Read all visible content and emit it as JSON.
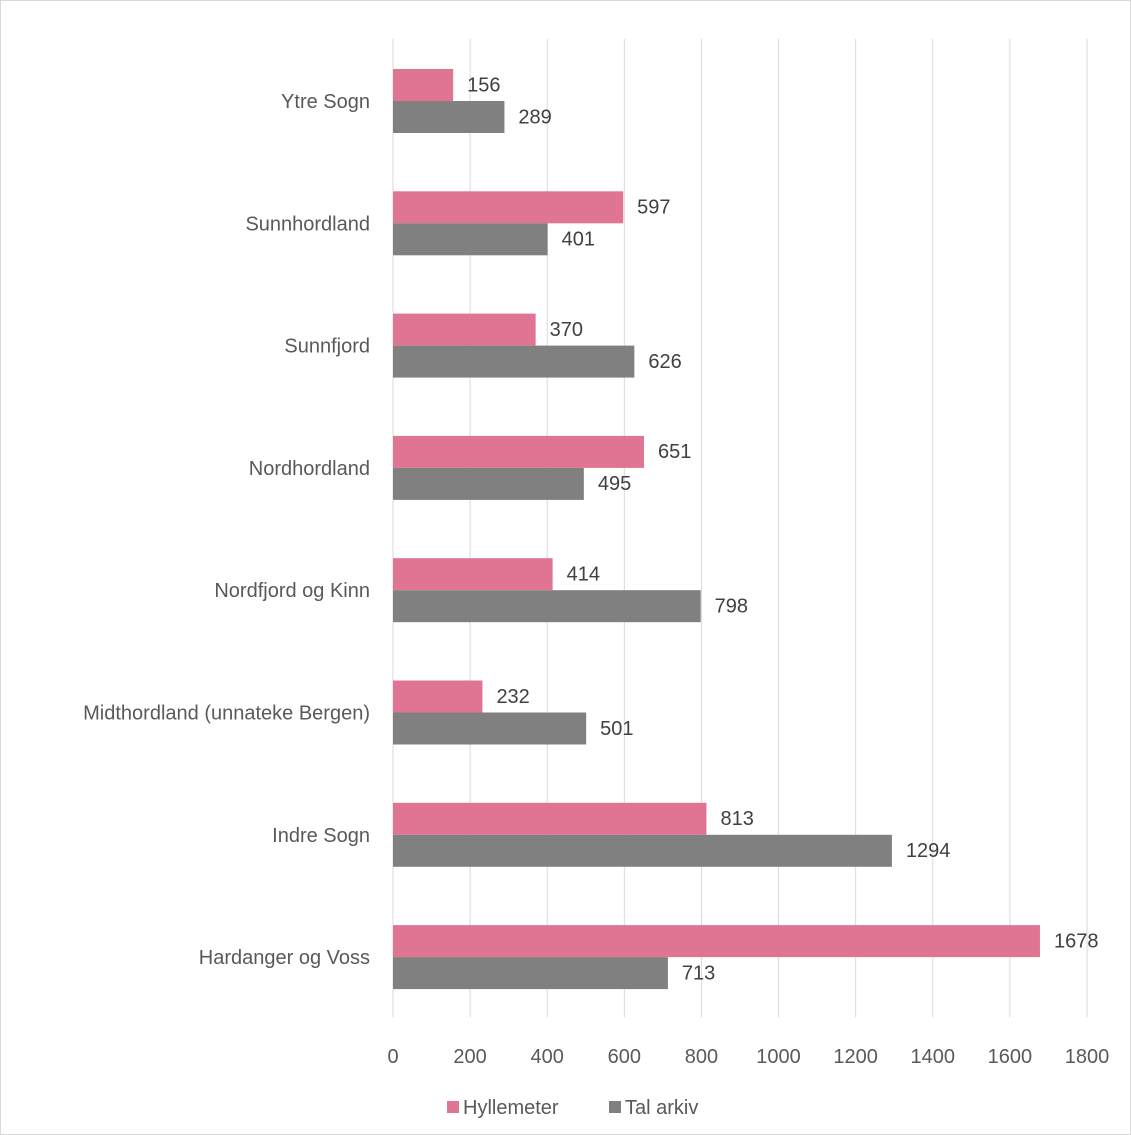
{
  "chart_data": {
    "type": "bar",
    "orientation": "horizontal",
    "categories": [
      "Ytre Sogn",
      "Sunnhordland",
      "Sunnfjord",
      "Nordhordland",
      "Nordfjord og Kinn",
      "Midthordland (unnateke Bergen)",
      "Indre Sogn",
      "Hardanger og Voss"
    ],
    "series": [
      {
        "name": "Hyllemeter",
        "color": "#e07593",
        "values": [
          156,
          597,
          370,
          651,
          414,
          232,
          813,
          1678
        ]
      },
      {
        "name": "Tal arkiv",
        "color": "#808080",
        "values": [
          289,
          401,
          626,
          495,
          798,
          501,
          1294,
          713
        ]
      }
    ],
    "xlim": [
      0,
      1800
    ],
    "xticks": [
      "0",
      "200",
      "400",
      "600",
      "800",
      "1000",
      "1200",
      "1400",
      "1600",
      "1800"
    ],
    "grid": "vertical",
    "legend": "bottom",
    "data_labels": true
  }
}
